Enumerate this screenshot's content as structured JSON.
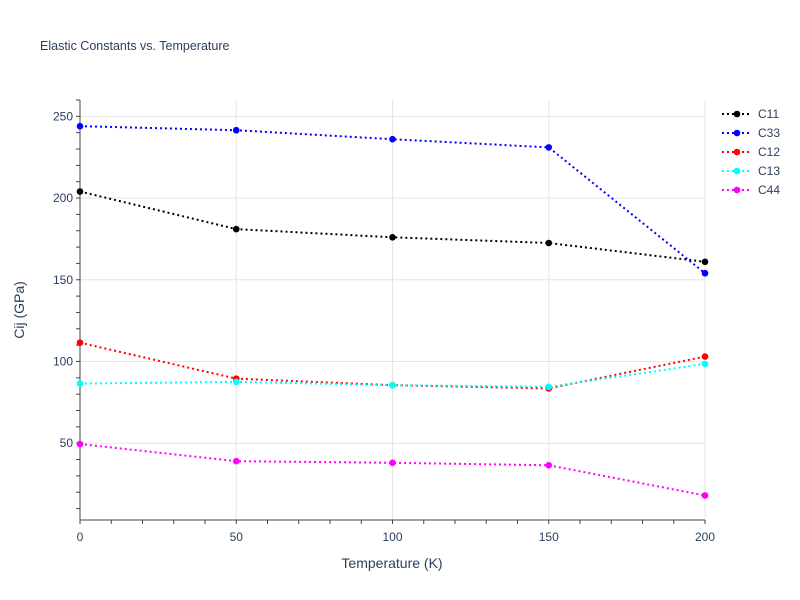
{
  "chart_data": {
    "type": "line",
    "title": "Elastic Constants vs. Temperature",
    "xlabel": "Temperature (K)",
    "ylabel": "Cij (GPa)",
    "x": [
      0,
      50,
      100,
      150,
      200
    ],
    "xlim": [
      0,
      200
    ],
    "ylim": [
      3,
      260
    ],
    "xticks": [
      0,
      50,
      100,
      150,
      200
    ],
    "yticks": [
      50,
      100,
      150,
      200,
      250
    ],
    "grid": true,
    "legend_position": "top-right",
    "line_style": "dotted",
    "series": [
      {
        "name": "C11",
        "color": "#000000",
        "values": [
          204,
          181,
          176,
          172.5,
          161
        ]
      },
      {
        "name": "C33",
        "color": "#0000ff",
        "values": [
          244,
          241.5,
          236,
          231,
          154
        ]
      },
      {
        "name": "C12",
        "color": "#ff0000",
        "values": [
          111.5,
          89.5,
          85.5,
          83.5,
          103
        ]
      },
      {
        "name": "C13",
        "color": "#00ffff",
        "values": [
          86.5,
          87.5,
          85.5,
          84.5,
          98.5
        ]
      },
      {
        "name": "C44",
        "color": "#ff00ff",
        "values": [
          49.5,
          39,
          38,
          36.5,
          18
        ]
      }
    ]
  }
}
